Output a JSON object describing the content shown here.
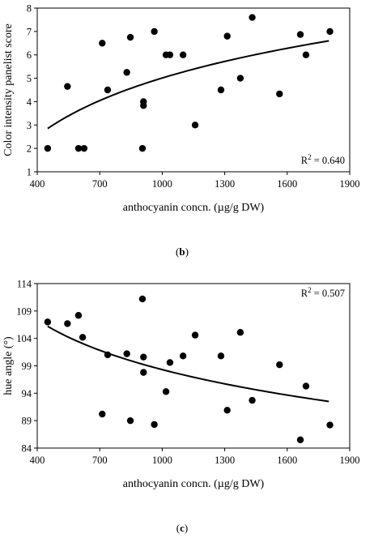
{
  "chart_data": [
    {
      "type": "scatter",
      "panel_label": "(b)",
      "xlabel": "anthocyanin concn. (µg/g DW)",
      "ylabel": "Color intensity panelist score",
      "xlim": [
        400,
        1900
      ],
      "ylim": [
        1,
        8
      ],
      "xticks": [
        "400",
        "700",
        "1000",
        "1300",
        "1600",
        "1900"
      ],
      "yticks": [
        "1",
        "2",
        "3",
        "4",
        "5",
        "6",
        "7",
        "8"
      ],
      "r2_prefix": "R",
      "r2_sup": "2",
      "r2_value": " = 0.640",
      "r2_position": "bottom-right",
      "grid": false,
      "trend": {
        "type": "logarithmic",
        "x_start": 450,
        "x_end": 1800,
        "y_start": 2.85,
        "y_end": 6.6
      },
      "points": [
        {
          "x": 450,
          "y": 2.0
        },
        {
          "x": 545,
          "y": 4.65
        },
        {
          "x": 598,
          "y": 2.0
        },
        {
          "x": 625,
          "y": 2.0
        },
        {
          "x": 712,
          "y": 6.5
        },
        {
          "x": 738,
          "y": 4.5
        },
        {
          "x": 830,
          "y": 5.25
        },
        {
          "x": 847,
          "y": 6.75
        },
        {
          "x": 905,
          "y": 2.0
        },
        {
          "x": 910,
          "y": 3.83
        },
        {
          "x": 910,
          "y": 4.0
        },
        {
          "x": 962,
          "y": 7.0
        },
        {
          "x": 1018,
          "y": 6.0
        },
        {
          "x": 1037,
          "y": 6.0
        },
        {
          "x": 1100,
          "y": 6.0
        },
        {
          "x": 1158,
          "y": 3.0
        },
        {
          "x": 1282,
          "y": 4.5
        },
        {
          "x": 1312,
          "y": 6.8
        },
        {
          "x": 1375,
          "y": 5.0
        },
        {
          "x": 1432,
          "y": 7.6
        },
        {
          "x": 1563,
          "y": 4.33
        },
        {
          "x": 1663,
          "y": 6.87
        },
        {
          "x": 1690,
          "y": 6.0
        },
        {
          "x": 1805,
          "y": 7.0
        }
      ]
    },
    {
      "type": "scatter",
      "panel_label": "(c)",
      "xlabel": "anthocyanin concn. (µg/g DW)",
      "ylabel": "hue angle (°)",
      "xlim": [
        400,
        1900
      ],
      "ylim": [
        84,
        114
      ],
      "xticks": [
        "400",
        "700",
        "1000",
        "1300",
        "1600",
        "1900"
      ],
      "yticks": [
        "84",
        "89",
        "94",
        "99",
        "104",
        "109",
        "114"
      ],
      "r2_prefix": "R",
      "r2_sup": "2",
      "r2_value": " = 0.507",
      "r2_position": "top-right",
      "grid": false,
      "trend": {
        "type": "logarithmic",
        "x_start": 450,
        "x_end": 1800,
        "y_start": 106.2,
        "y_end": 92.5
      },
      "points": [
        {
          "x": 450,
          "y": 107.0
        },
        {
          "x": 545,
          "y": 106.7
        },
        {
          "x": 598,
          "y": 108.2
        },
        {
          "x": 618,
          "y": 104.2
        },
        {
          "x": 712,
          "y": 90.2
        },
        {
          "x": 738,
          "y": 101.0
        },
        {
          "x": 830,
          "y": 101.2
        },
        {
          "x": 847,
          "y": 89.0
        },
        {
          "x": 905,
          "y": 111.2
        },
        {
          "x": 910,
          "y": 100.6
        },
        {
          "x": 910,
          "y": 97.8
        },
        {
          "x": 962,
          "y": 88.3
        },
        {
          "x": 1018,
          "y": 94.3
        },
        {
          "x": 1037,
          "y": 99.6
        },
        {
          "x": 1100,
          "y": 100.8
        },
        {
          "x": 1158,
          "y": 104.6
        },
        {
          "x": 1282,
          "y": 100.8
        },
        {
          "x": 1312,
          "y": 90.9
        },
        {
          "x": 1375,
          "y": 105.1
        },
        {
          "x": 1432,
          "y": 92.7
        },
        {
          "x": 1563,
          "y": 99.2
        },
        {
          "x": 1663,
          "y": 85.5
        },
        {
          "x": 1690,
          "y": 95.3
        },
        {
          "x": 1805,
          "y": 88.2
        }
      ]
    }
  ]
}
